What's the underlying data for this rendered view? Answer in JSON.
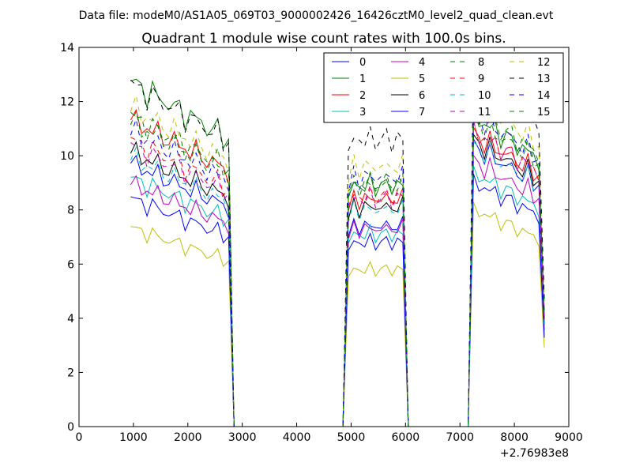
{
  "figure": {
    "suptitle": "Data file: modeM0/AS1A05_069T03_9000002426_16426cztM0_level2_quad_clean.evt"
  },
  "chart_data": {
    "type": "line",
    "title": "Quadrant 1 module wise count rates with 100.0s bins.",
    "xlabel": "",
    "ylabel": "",
    "x_offset_label": "+2.76983e8",
    "xlim": [
      0,
      9000
    ],
    "ylim": [
      0,
      14
    ],
    "xticks": [
      0,
      1000,
      2000,
      3000,
      4000,
      5000,
      6000,
      7000,
      8000,
      9000
    ],
    "yticks": [
      0,
      2,
      4,
      6,
      8,
      10,
      12,
      14
    ],
    "grid": false,
    "legend": {
      "placement": "top-right",
      "columns": 4
    },
    "segments": [
      {
        "x_start": 950,
        "x_end": 2750,
        "step": 100
      },
      {
        "x_start": 4950,
        "x_end": 5950,
        "step": 100
      },
      {
        "x_start": 7250,
        "x_end": 8450,
        "step": 100
      }
    ],
    "gap_value": 0,
    "series": [
      {
        "name": "0",
        "color": "#0000ff",
        "dash": "solid",
        "levels": [
          9.0,
          7.4,
          9.4
        ]
      },
      {
        "name": "1",
        "color": "#008000",
        "dash": "solid",
        "levels": [
          11.8,
          8.9,
          10.4
        ]
      },
      {
        "name": "2",
        "color": "#ff0000",
        "dash": "solid",
        "levels": [
          10.5,
          8.4,
          9.8
        ]
      },
      {
        "name": "3",
        "color": "#00bfbf",
        "dash": "solid",
        "levels": [
          8.5,
          7.1,
          8.5
        ]
      },
      {
        "name": "4",
        "color": "#bf00bf",
        "dash": "solid",
        "levels": [
          8.3,
          7.3,
          8.9
        ]
      },
      {
        "name": "5",
        "color": "#bfbf00",
        "dash": "solid",
        "levels": [
          6.8,
          5.8,
          7.3
        ]
      },
      {
        "name": "6",
        "color": "#000000",
        "dash": "solid",
        "levels": [
          9.4,
          8.1,
          9.6
        ]
      },
      {
        "name": "7",
        "color": "#0000ff",
        "dash": "solid",
        "levels": [
          7.8,
          6.8,
          8.2
        ]
      },
      {
        "name": "8",
        "color": "#008000",
        "dash": "dashed",
        "levels": [
          10.4,
          8.9,
          10.3
        ]
      },
      {
        "name": "9",
        "color": "#ff0000",
        "dash": "dashed",
        "levels": [
          9.8,
          8.5,
          9.9
        ]
      },
      {
        "name": "10",
        "color": "#00bfbf",
        "dash": "dashed",
        "levels": [
          9.2,
          8.0,
          9.4
        ]
      },
      {
        "name": "11",
        "color": "#bf00bf",
        "dash": "dashed",
        "levels": [
          9.6,
          8.4,
          9.9
        ]
      },
      {
        "name": "12",
        "color": "#bfbf00",
        "dash": "dashed",
        "levels": [
          10.9,
          9.6,
          11.0
        ]
      },
      {
        "name": "13",
        "color": "#000000",
        "dash": "dashed",
        "levels": [
          11.7,
          10.6,
          11.8
        ]
      },
      {
        "name": "14",
        "color": "#0000ff",
        "dash": "dashed",
        "levels": [
          10.1,
          9.2,
          10.5
        ]
      },
      {
        "name": "15",
        "color": "#008000",
        "dash": "dashed",
        "levels": [
          10.6,
          9.0,
          10.6
        ]
      }
    ]
  }
}
